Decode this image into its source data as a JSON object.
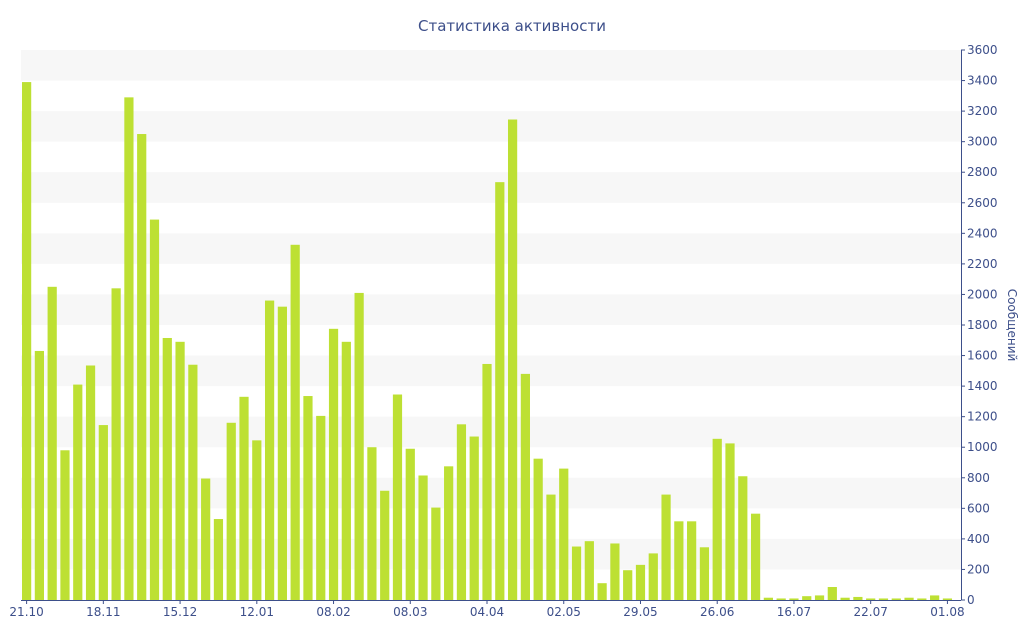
{
  "chart_data": {
    "type": "bar",
    "title": "Статистика активности",
    "xlabel": "",
    "ylabel": "Сообщений",
    "ylim": [
      0,
      3600
    ],
    "y_axis_position": "right",
    "y_ticks": [
      0,
      200,
      400,
      600,
      800,
      1000,
      1200,
      1400,
      1600,
      1800,
      2000,
      2200,
      2400,
      2600,
      2800,
      3000,
      3200,
      3400,
      3600
    ],
    "x_tick_labels": [
      {
        "index": 0,
        "label": "21.10"
      },
      {
        "index": 6,
        "label": "18.11"
      },
      {
        "index": 12,
        "label": "15.12"
      },
      {
        "index": 18,
        "label": "12.01"
      },
      {
        "index": 24,
        "label": "08.02"
      },
      {
        "index": 30,
        "label": "08.03"
      },
      {
        "index": 36,
        "label": "04.04"
      },
      {
        "index": 42,
        "label": "02.05"
      },
      {
        "index": 48,
        "label": "29.05"
      },
      {
        "index": 54,
        "label": "26.06"
      },
      {
        "index": 60,
        "label": "16.07"
      },
      {
        "index": 66,
        "label": "22.07"
      },
      {
        "index": 72,
        "label": "01.08"
      }
    ],
    "values": [
      3390,
      1630,
      2050,
      980,
      1410,
      1535,
      1145,
      2040,
      3290,
      3050,
      2490,
      1715,
      1690,
      1540,
      795,
      530,
      1160,
      1330,
      1045,
      1960,
      1920,
      2325,
      1335,
      1205,
      1775,
      1690,
      2010,
      1000,
      715,
      1345,
      990,
      815,
      605,
      875,
      1150,
      1070,
      1545,
      2735,
      3145,
      1480,
      925,
      690,
      860,
      350,
      385,
      110,
      370,
      195,
      230,
      305,
      690,
      515,
      515,
      345,
      1055,
      1025,
      810,
      565,
      15,
      10,
      10,
      25,
      30,
      85,
      15,
      20,
      10,
      10,
      10,
      15,
      10,
      30,
      10
    ],
    "bar_color": "#bde033",
    "grid": true,
    "band_color": "#f7f7f7"
  }
}
